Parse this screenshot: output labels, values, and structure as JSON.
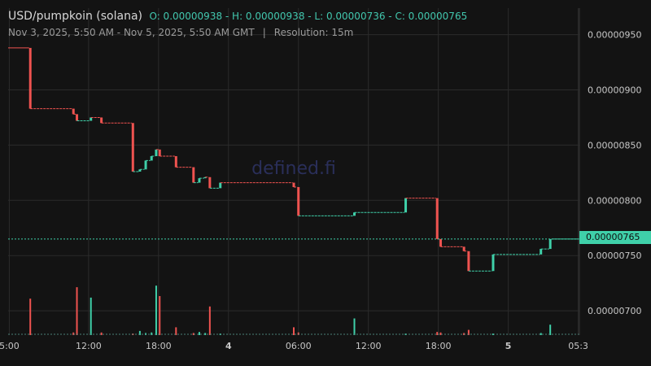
{
  "header": {
    "pair": "USD/pumpkoin (solana)",
    "ohlc": "O: 0.00000938 - H: 0.00000938 - L: 0.00000736 - C: 0.00000765",
    "date_range": "Nov 3, 2025, 5:50 AM - Nov 5, 2025, 5:50 AM GMT",
    "separator": "|",
    "resolution": "Resolution: 15m"
  },
  "watermark": "defined.fi",
  "current_price": "0.00000765",
  "colors": {
    "background": "#131313",
    "up": "#3fd0a9",
    "down": "#ef5350",
    "grid": "#2b2b2b",
    "axis_text": "#c8c8c8"
  },
  "chart_data": {
    "type": "candlestick",
    "x_tick_labels": [
      "5:00",
      "12:00",
      "18:00",
      "4",
      "06:00",
      "12:00",
      "18:00",
      "5",
      "05:3"
    ],
    "x_tick_times": [
      -0.8,
      6,
      12,
      18,
      24,
      30,
      36,
      42,
      48
    ],
    "y_tick_labels": [
      "0.00000950",
      "0.00000900",
      "0.00000850",
      "0.00000800",
      "0.00000750",
      "0.00000700"
    ],
    "y_tick_values": [
      9.5e-06,
      9e-06,
      8.5e-06,
      8e-06,
      7.5e-06,
      7e-06
    ],
    "ylim": [
      6.78e-06,
      9.74e-06
    ],
    "xlim": [
      -0.9,
      48.1
    ],
    "last_price": 7.65e-06,
    "candles": [
      {
        "t": 1.0,
        "o": 9.38e-06,
        "c": 8.83e-06,
        "v": 0.7
      },
      {
        "t": 4.7,
        "o": 8.83e-06,
        "c": 8.78e-06,
        "v": 0.05
      },
      {
        "t": 5.0,
        "o": 8.78e-06,
        "c": 8.72e-06,
        "v": 0.92
      },
      {
        "t": 6.2,
        "o": 8.72e-06,
        "c": 8.75e-06,
        "v": 0.72
      },
      {
        "t": 7.1,
        "o": 8.75e-06,
        "c": 8.7e-06,
        "v": 0.05
      },
      {
        "t": 9.8,
        "o": 8.7e-06,
        "c": 8.26e-06,
        "v": 0.03
      },
      {
        "t": 10.4,
        "o": 8.26e-06,
        "c": 8.28e-06,
        "v": 0.08
      },
      {
        "t": 10.9,
        "o": 8.28e-06,
        "c": 8.36e-06,
        "v": 0.04
      },
      {
        "t": 11.4,
        "o": 8.36e-06,
        "c": 8.4e-06,
        "v": 0.05
      },
      {
        "t": 11.8,
        "o": 8.4e-06,
        "c": 8.46e-06,
        "v": 0.95
      },
      {
        "t": 12.1,
        "o": 8.46e-06,
        "c": 8.4e-06,
        "v": 0.75
      },
      {
        "t": 13.5,
        "o": 8.4e-06,
        "c": 8.3e-06,
        "v": 0.15
      },
      {
        "t": 15.0,
        "o": 8.3e-06,
        "c": 8.16e-06,
        "v": 0.04
      },
      {
        "t": 15.5,
        "o": 8.16e-06,
        "c": 8.2e-06,
        "v": 0.06
      },
      {
        "t": 16.0,
        "o": 8.2e-06,
        "c": 8.21e-06,
        "v": 0.04
      },
      {
        "t": 16.4,
        "o": 8.21e-06,
        "c": 8.11e-06,
        "v": 0.55
      },
      {
        "t": 17.3,
        "o": 8.11e-06,
        "c": 8.16e-06,
        "v": 0.03
      },
      {
        "t": 23.6,
        "o": 8.16e-06,
        "c": 8.12e-06,
        "v": 0.15
      },
      {
        "t": 24.0,
        "o": 8.12e-06,
        "c": 7.86e-06,
        "v": 0.05
      },
      {
        "t": 28.8,
        "o": 7.86e-06,
        "c": 7.89e-06,
        "v": 0.32
      },
      {
        "t": 33.2,
        "o": 7.89e-06,
        "c": 8.02e-06,
        "v": 0.03
      },
      {
        "t": 35.9,
        "o": 8.02e-06,
        "c": 7.65e-06,
        "v": 0.06
      },
      {
        "t": 36.2,
        "o": 7.65e-06,
        "c": 7.58e-06,
        "v": 0.05
      },
      {
        "t": 38.2,
        "o": 7.58e-06,
        "c": 7.54e-06,
        "v": 0.04
      },
      {
        "t": 38.6,
        "o": 7.54e-06,
        "c": 7.36e-06,
        "v": 0.1
      },
      {
        "t": 40.7,
        "o": 7.36e-06,
        "c": 7.51e-06,
        "v": 0.03
      },
      {
        "t": 44.8,
        "o": 7.51e-06,
        "c": 7.56e-06,
        "v": 0.04
      },
      {
        "t": 45.6,
        "o": 7.56e-06,
        "c": 7.65e-06,
        "v": 0.2
      }
    ]
  }
}
